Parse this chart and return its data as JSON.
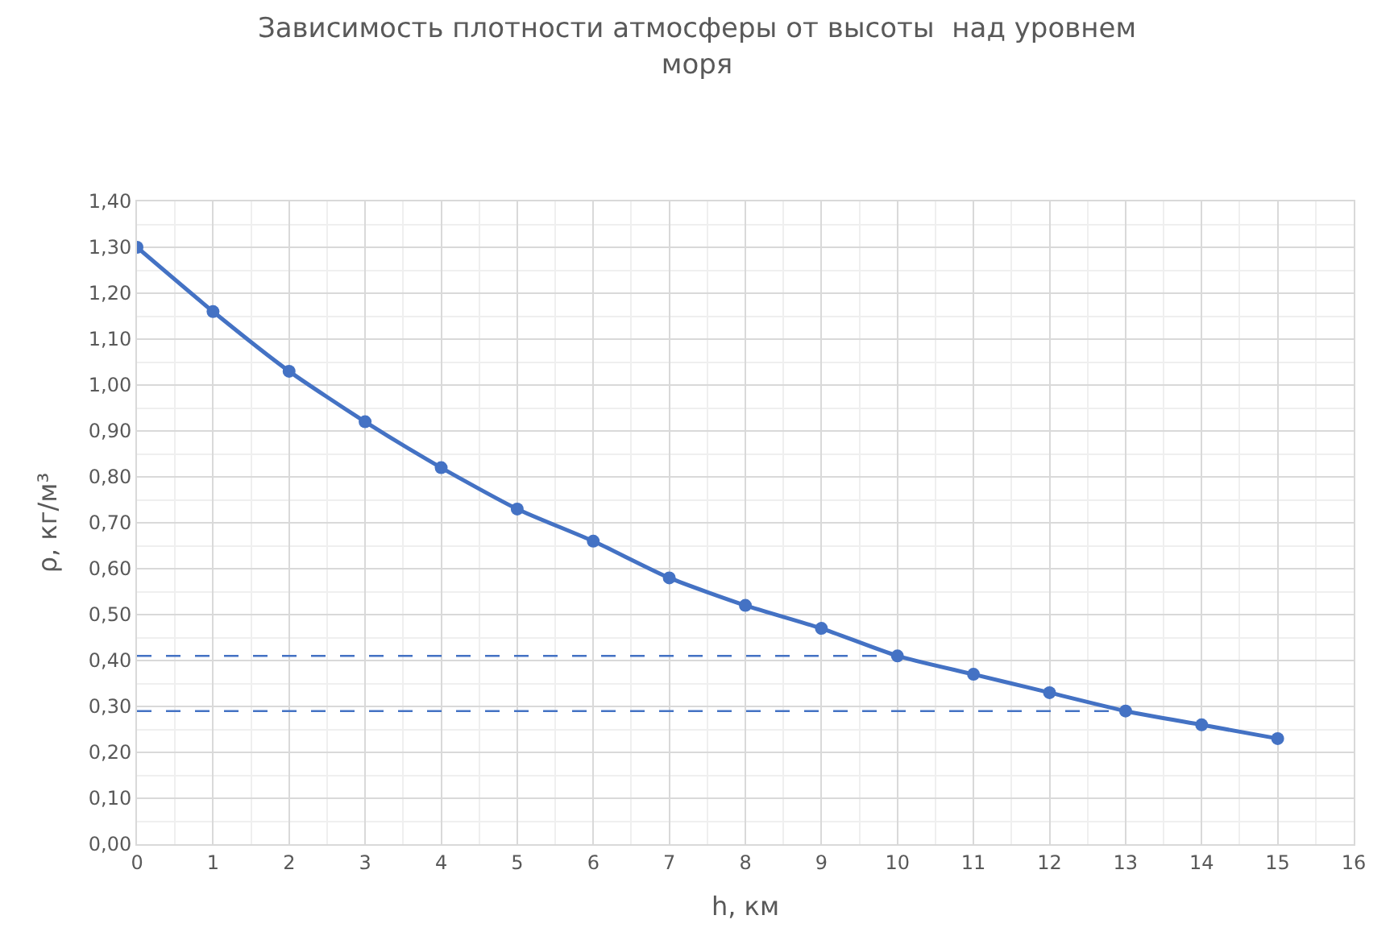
{
  "chart_data": {
    "type": "line",
    "title": "Зависимость плотности атмосферы от высоты  над уровнем моря",
    "xlabel": "h, км",
    "ylabel": "ρ, кг/м³",
    "x": [
      0,
      1,
      2,
      3,
      4,
      5,
      6,
      7,
      8,
      9,
      10,
      11,
      12,
      13,
      14,
      15
    ],
    "series": [
      {
        "color": "#4472c4",
        "values": [
          1.3,
          1.16,
          1.03,
          0.92,
          0.82,
          0.73,
          0.66,
          0.58,
          0.52,
          0.47,
          0.41,
          0.37,
          0.33,
          0.29,
          0.26,
          0.23
        ]
      }
    ],
    "xlim": [
      0,
      16
    ],
    "xticks": [
      0,
      1,
      2,
      3,
      4,
      5,
      6,
      7,
      8,
      9,
      10,
      11,
      12,
      13,
      14,
      15,
      16
    ],
    "ylim": [
      0,
      1.4
    ],
    "yticks": [
      {
        "value": 0,
        "label": "0,00"
      },
      {
        "value": 0.1,
        "label": "0,10"
      },
      {
        "value": 0.2,
        "label": "0,20"
      },
      {
        "value": 0.3,
        "label": "0,30"
      },
      {
        "value": 0.4,
        "label": "0,40"
      },
      {
        "value": 0.5,
        "label": "0,50"
      },
      {
        "value": 0.6,
        "label": "0,60"
      },
      {
        "value": 0.7,
        "label": "0,70"
      },
      {
        "value": 0.8,
        "label": "0,80"
      },
      {
        "value": 0.9,
        "label": "0,90"
      },
      {
        "value": 1.0,
        "label": "1,00"
      },
      {
        "value": 1.1,
        "label": "1,10"
      },
      {
        "value": 1.2,
        "label": "1,20"
      },
      {
        "value": 1.3,
        "label": "1,30"
      },
      {
        "value": 1.4,
        "label": "1,40"
      }
    ],
    "ref_lines": [
      {
        "axis": "y",
        "value": 0.41,
        "color": "#4472c4",
        "line_style": "dashed"
      },
      {
        "axis": "y",
        "value": 0.29,
        "color": "#4472c4",
        "line_style": "dashed"
      }
    ],
    "grid": true,
    "marker": "circle",
    "line_style": "solid"
  }
}
